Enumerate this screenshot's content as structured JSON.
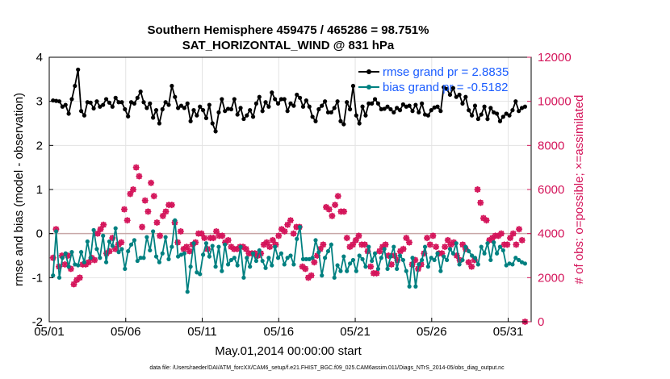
{
  "chart_data": {
    "type": "line",
    "title_line1": "Southern Hemisphere 459475 / 465286 = 98.751%",
    "title_line2": "SAT_HORIZONTAL_WIND @ 831 hPa",
    "xlabel": "May.01,2014 00:00:00 start",
    "ylabel": "rmse and bias (model - observation)",
    "ylabel_right": "# of obs: o=possible; ×=assimilated",
    "xlim": [
      0,
      31.5
    ],
    "ylim": [
      -2,
      4
    ],
    "ylim_right": [
      0,
      12000
    ],
    "x_ticks": [
      {
        "value": 0,
        "label": "05/01"
      },
      {
        "value": 5,
        "label": "05/06"
      },
      {
        "value": 10,
        "label": "05/11"
      },
      {
        "value": 15,
        "label": "05/16"
      },
      {
        "value": 20,
        "label": "05/21"
      },
      {
        "value": 25,
        "label": "05/26"
      },
      {
        "value": 30,
        "label": "05/31"
      }
    ],
    "y_ticks": [
      {
        "value": -2,
        "label": "-2"
      },
      {
        "value": -1,
        "label": "-1"
      },
      {
        "value": 0,
        "label": "0"
      },
      {
        "value": 1,
        "label": "1"
      },
      {
        "value": 2,
        "label": "2"
      },
      {
        "value": 3,
        "label": "3"
      },
      {
        "value": 4,
        "label": "4"
      }
    ],
    "y_ticks_right": [
      {
        "value": 0,
        "label": "0"
      },
      {
        "value": 2000,
        "label": "2000"
      },
      {
        "value": 4000,
        "label": "4000"
      },
      {
        "value": 6000,
        "label": "6000"
      },
      {
        "value": 8000,
        "label": "8000"
      },
      {
        "value": 10000,
        "label": "10000"
      },
      {
        "value": 12000,
        "label": "12000"
      }
    ],
    "grid": true,
    "legend_position": "top-right",
    "colors": {
      "rmse": "#000000",
      "bias": "#008080",
      "obs": "#d4145a",
      "zero_line": "#c8a8a8",
      "legend_text": "#1a5cff"
    },
    "series": [
      {
        "name": "rmse grand pr = 2.8835",
        "values": [
          3.02,
          3.01,
          3.0,
          2.88,
          2.92,
          2.72,
          3.05,
          3.35,
          3.72,
          2.78,
          2.68,
          2.98,
          2.97,
          2.84,
          3.0,
          2.88,
          2.92,
          3.05,
          2.97,
          2.88,
          3.08,
          2.98,
          2.98,
          2.82,
          2.66,
          2.98,
          2.95,
          3.08,
          3.22,
          2.98,
          2.85,
          2.95,
          2.63,
          2.8,
          2.5,
          2.82,
          2.98,
          2.92,
          3.35,
          3.1,
          2.85,
          2.9,
          2.85,
          2.95,
          2.55,
          2.8,
          2.68,
          2.88,
          2.8,
          2.62,
          2.92,
          2.5,
          2.32,
          2.75,
          3.05,
          2.78,
          2.83,
          2.82,
          3.05,
          2.7,
          2.85,
          2.6,
          2.68,
          2.8,
          2.65,
          2.95,
          3.1,
          2.78,
          2.98,
          2.88,
          3.2,
          3.05,
          2.95,
          3.05,
          3.05,
          2.78,
          2.95,
          2.9,
          3.15,
          3.08,
          2.88,
          3.02,
          2.88,
          2.65,
          2.55,
          2.82,
          2.9,
          3.0,
          2.75,
          2.75,
          2.85,
          3.0,
          2.55,
          2.48,
          2.98,
          2.82,
          3.35,
          2.68,
          2.5,
          2.88,
          2.68,
          2.95,
          2.95,
          3.05,
          2.95,
          2.82,
          2.83,
          2.88,
          2.82,
          2.75,
          2.85,
          2.8,
          2.93,
          2.88,
          2.9,
          2.78,
          2.92,
          2.75,
          2.95,
          2.7,
          2.68,
          2.8,
          2.86,
          2.88,
          2.78,
          3.32,
          3.28,
          3.15,
          3.3,
          3.1,
          3.15,
          2.95,
          3.1,
          2.8,
          2.68,
          2.9,
          2.6,
          2.7,
          2.88,
          2.6,
          2.85,
          2.75,
          2.72,
          2.55,
          2.65,
          2.72,
          2.68,
          2.8,
          3.0,
          2.78,
          2.85,
          2.88
        ]
      },
      {
        "name": "bias grand pr = -0.5182",
        "values": [
          -0.95,
          0.05,
          -1.0,
          -0.55,
          -0.45,
          -0.75,
          -0.42,
          -0.7,
          -0.72,
          -0.42,
          -0.65,
          -0.18,
          -0.55,
          0.08,
          -0.35,
          -0.55,
          -0.05,
          -0.65,
          -0.18,
          -0.28,
          0.12,
          -0.42,
          -0.35,
          -0.8,
          -0.4,
          -0.25,
          -0.15,
          -0.62,
          -0.55,
          -0.55,
          -0.08,
          -0.38,
          0.05,
          -0.52,
          -0.65,
          -0.45,
          -0.08,
          -0.58,
          -0.3,
          0.3,
          -0.52,
          -0.48,
          -0.45,
          -1.32,
          -0.75,
          -0.22,
          -0.88,
          -0.92,
          -0.48,
          -0.22,
          -0.52,
          -0.28,
          -0.75,
          -0.3,
          -0.85,
          -0.25,
          -0.7,
          -0.6,
          -0.55,
          -0.72,
          -0.3,
          -1.0,
          -0.55,
          -0.75,
          -0.45,
          -0.62,
          -0.38,
          -0.62,
          -0.78,
          -0.55,
          -0.72,
          -0.3,
          -0.55,
          -0.45,
          -0.7,
          -0.55,
          -0.5,
          -0.7,
          -0.12,
          0.15,
          -0.58,
          -0.58,
          -0.58,
          -0.55,
          -0.15,
          -0.42,
          -0.95,
          -0.55,
          -0.4,
          -0.25,
          -1.0,
          -0.72,
          -0.85,
          -0.52,
          -0.85,
          -0.68,
          -0.6,
          -0.85,
          -0.5,
          -0.58,
          -0.75,
          -0.3,
          -0.62,
          -0.45,
          -0.8,
          -0.55,
          -0.35,
          -0.8,
          -0.52,
          -0.3,
          -0.8,
          -0.5,
          -0.6,
          -0.85,
          -1.2,
          -0.55,
          -1.2,
          -0.7,
          -0.6,
          -0.3,
          -0.75,
          -0.55,
          -0.6,
          -0.45,
          -0.85,
          -0.52,
          -0.6,
          -0.35,
          -0.45,
          -0.22,
          -0.7,
          -0.6,
          -0.3,
          -0.4,
          -0.5,
          -0.55,
          -0.7,
          -0.3,
          -0.45,
          -0.22,
          -0.6,
          -0.2,
          -0.45,
          -0.3,
          -0.38,
          -0.72,
          -0.68,
          -0.7,
          -0.55,
          -0.6,
          -0.65,
          -0.68
        ]
      }
    ],
    "obs_series": [
      {
        "name": "possible / assimilated",
        "values": [
          2900,
          4200,
          2500,
          3000,
          2600,
          3000,
          2400,
          1700,
          1900,
          2000,
          2600,
          2600,
          2700,
          2900,
          2800,
          4000,
          4200,
          4400,
          3100,
          3200,
          3800,
          3300,
          3500,
          3600,
          5100,
          4600,
          5800,
          6000,
          7000,
          6600,
          4300,
          5500,
          5000,
          6300,
          5700,
          4500,
          3900,
          4800,
          5000,
          5300,
          5300,
          4500,
          3600,
          4100,
          3300,
          3400,
          3200,
          3500,
          3600,
          4000,
          4000,
          3800,
          3300,
          3800,
          3800,
          4100,
          3900,
          3900,
          3600,
          3700,
          3400,
          3300,
          3300,
          3400,
          3400,
          3300,
          3100,
          3100,
          3100,
          3000,
          3100,
          3500,
          3600,
          3400,
          3700,
          3500,
          3900,
          4200,
          4100,
          4400,
          4600,
          4000,
          4300,
          4300,
          2500,
          2400,
          2000,
          2100,
          2700,
          3000,
          3300,
          3500,
          5200,
          5100,
          4800,
          5300,
          5700,
          5000,
          5000,
          3800,
          3400,
          3500,
          3700,
          3900,
          3500,
          3500,
          3200,
          2500,
          2200,
          2200,
          3200,
          3400,
          3500,
          3000,
          2600,
          3000,
          2800,
          3200,
          3300,
          3800,
          3600,
          2600,
          2800,
          2400,
          2600,
          3100,
          3800,
          3500,
          3900,
          3400,
          3100,
          3100,
          3400,
          3700,
          3500,
          3600,
          3000,
          2800,
          3500,
          3300,
          2700,
          2500,
          2800,
          6000,
          5400,
          4700,
          4600,
          3700,
          3800,
          3900,
          3900,
          4000,
          3500,
          3500,
          3800,
          4000,
          3500,
          4200,
          3700,
          0
        ]
      }
    ],
    "footer": "data file: /Users/raeder/DAI/ATM_forcXX/CAM6_setup/f.e21.FHIST_BGC.f09_025.CAM6assim.011/Diags_NTrS_2014-05/obs_diag_output.nc"
  }
}
